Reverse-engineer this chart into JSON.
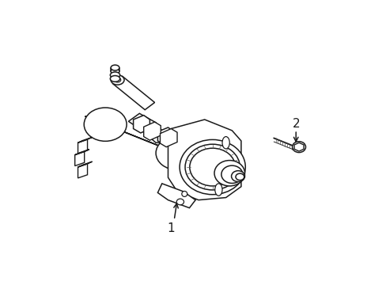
{
  "background_color": "#ffffff",
  "figure_width": 4.89,
  "figure_height": 3.6,
  "dpi": 100,
  "label1": "1",
  "label2": "2",
  "line_color": "#1a1a1a",
  "line_width": 1.1
}
